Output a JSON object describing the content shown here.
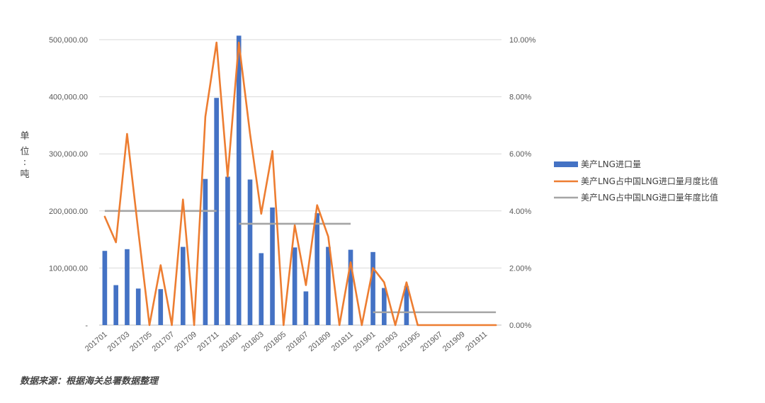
{
  "chart_data": {
    "type": "bar+line",
    "y_label_chars": [
      "单",
      "位",
      ":",
      "吨"
    ],
    "left_axis": {
      "ylim": [
        0,
        500000
      ],
      "tick_labels": [
        "-",
        "100,000.00",
        "200,000.00",
        "300,000.00",
        "400,000.00",
        "500,000.00"
      ]
    },
    "right_axis": {
      "ylim": [
        0,
        10
      ],
      "tick_labels": [
        "0.00%",
        "2.00%",
        "4.00%",
        "6.00%",
        "8.00%",
        "10.00%"
      ]
    },
    "grid": true,
    "legend_position": "right",
    "categories": [
      "201701",
      "201702",
      "201703",
      "201704",
      "201705",
      "201706",
      "201707",
      "201708",
      "201709",
      "201710",
      "201711",
      "201712",
      "201801",
      "201802",
      "201803",
      "201804",
      "201805",
      "201806",
      "201807",
      "201808",
      "201809",
      "201810",
      "201811",
      "201812",
      "201901",
      "201902",
      "201903",
      "201904",
      "201905",
      "201906",
      "201907",
      "201908",
      "201909",
      "201910",
      "201911",
      "201912"
    ],
    "shown_x_labels": [
      "201701",
      "201703",
      "201705",
      "201707",
      "201709",
      "201711",
      "201801",
      "201803",
      "201805",
      "201807",
      "201809",
      "201811",
      "201901",
      "201903",
      "201905",
      "201907",
      "201909",
      "201911"
    ],
    "series": [
      {
        "name": "美产LNG进口量",
        "kind": "bar",
        "axis": "left",
        "color": "#4472C4",
        "values": [
          130000,
          70000,
          133000,
          64000,
          0,
          63000,
          0,
          137000,
          0,
          256000,
          398000,
          260000,
          507000,
          255000,
          126000,
          206000,
          0,
          136000,
          59000,
          196000,
          137000,
          0,
          132000,
          0,
          128000,
          65000,
          0,
          68000,
          0,
          0,
          0,
          0,
          0,
          0,
          0,
          0
        ]
      },
      {
        "name": "美产LNG占中国LNG进口量月度比值",
        "kind": "line",
        "axis": "right",
        "color": "#ED7D31",
        "values": [
          3.8,
          2.9,
          6.7,
          3.3,
          0,
          2.1,
          0,
          4.4,
          0,
          7.3,
          9.9,
          5.2,
          9.9,
          6.7,
          3.9,
          6.1,
          0,
          3.5,
          1.4,
          4.2,
          3.1,
          0,
          2.2,
          0,
          2.0,
          1.5,
          0,
          1.5,
          0,
          0,
          0,
          0,
          0,
          0,
          0,
          0
        ]
      },
      {
        "name": "美产LNG占中国LNG进口量年度比值",
        "kind": "step",
        "axis": "right",
        "color": "#A5A5A5",
        "segments": [
          {
            "from": "201701",
            "to": "201711",
            "value": 4.0
          },
          {
            "from": "201801",
            "to": "201811",
            "value": 3.55
          },
          {
            "from": "201901",
            "to": "201912",
            "value": 0.45
          }
        ]
      }
    ]
  },
  "source_text": "数据来源：根据海关总署数据整理"
}
